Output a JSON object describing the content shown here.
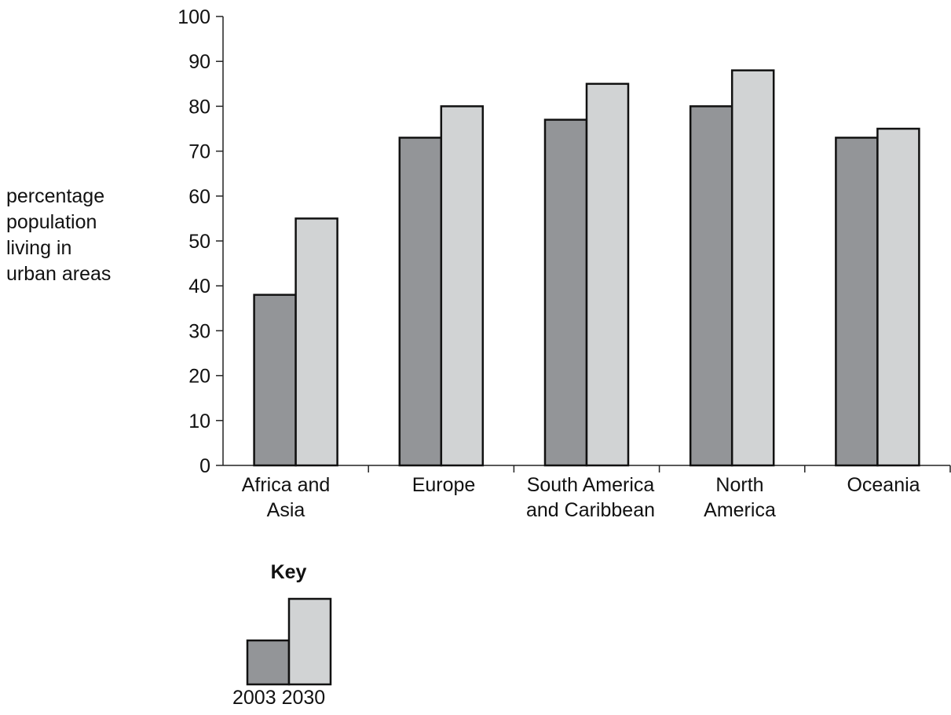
{
  "chart_data": {
    "type": "bar",
    "ylabel_lines": [
      "percentage",
      "population",
      "living in",
      "urban areas"
    ],
    "xlabel": "",
    "ylim": [
      0,
      100
    ],
    "yticks": [
      0,
      10,
      20,
      30,
      40,
      50,
      60,
      70,
      80,
      90,
      100
    ],
    "categories": [
      [
        "Africa and",
        "Asia"
      ],
      [
        "Europe"
      ],
      [
        "South America",
        "and Caribbean"
      ],
      [
        "North",
        "America"
      ],
      [
        "Oceania"
      ]
    ],
    "series": [
      {
        "name": "2003",
        "color": "#939598",
        "values": [
          38,
          73,
          77,
          80,
          73
        ]
      },
      {
        "name": "2030",
        "color": "#d1d3d4",
        "values": [
          55,
          80,
          85,
          88,
          75
        ]
      }
    ],
    "grid": false,
    "legend": {
      "title": "Key",
      "placement": "bottom-left",
      "labels": [
        "2003",
        "2030"
      ]
    }
  }
}
